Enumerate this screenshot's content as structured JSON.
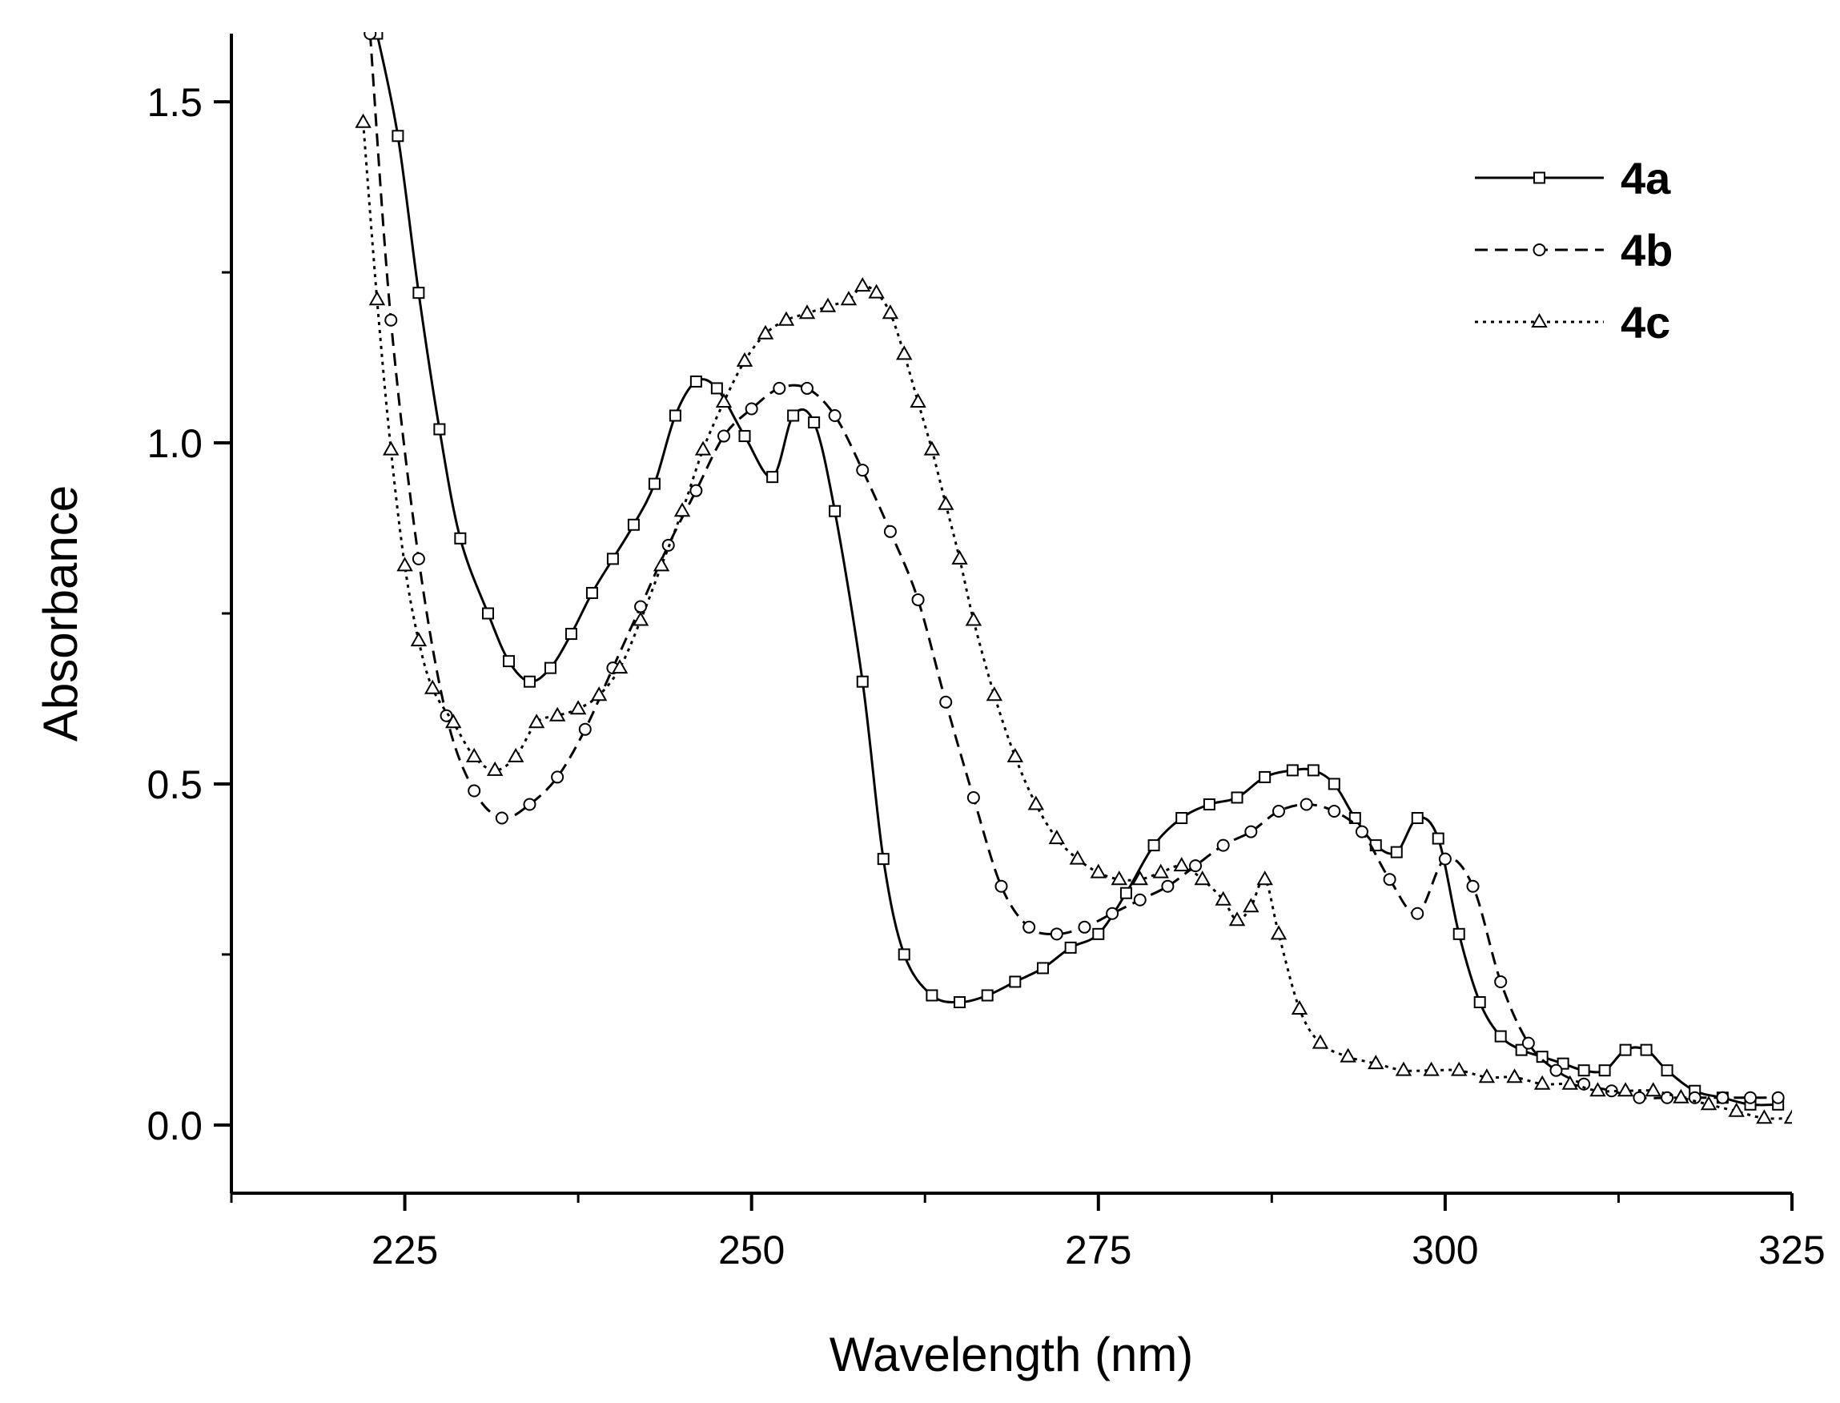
{
  "chart_data": {
    "type": "line",
    "xlabel": "Wavelength (nm)",
    "ylabel": "Absorbance",
    "xlim": [
      212.5,
      325
    ],
    "ylim": [
      -0.1,
      1.6
    ],
    "xticks": [
      225,
      250,
      275,
      300,
      325
    ],
    "xtick_labels": [
      "225",
      "250",
      "275",
      "300",
      "325"
    ],
    "yticks": [
      0.0,
      0.5,
      1.0,
      1.5
    ],
    "ytick_labels": [
      "0.0",
      "0.5",
      "1.0",
      "1.5"
    ],
    "legend_position": "top-right",
    "series": [
      {
        "name": "4a",
        "line_style": "solid",
        "marker": "square",
        "x": [
          223,
          224.5,
          226,
          227.5,
          229,
          231,
          232.5,
          234,
          235.5,
          237,
          238.5,
          240,
          241.5,
          243,
          244.5,
          246,
          247.5,
          249.5,
          251.5,
          253,
          254.5,
          256,
          258,
          259.5,
          261,
          263,
          265,
          267,
          269,
          271,
          273,
          275,
          277,
          279,
          281,
          283,
          285,
          287,
          289,
          290.5,
          292,
          293.5,
          295,
          296.5,
          298,
          299.5,
          301,
          302.5,
          304,
          305.5,
          307,
          308.5,
          310,
          311.5,
          313,
          314.5,
          316,
          318,
          320,
          322,
          324
        ],
        "y": [
          1.6,
          1.45,
          1.22,
          1.02,
          0.86,
          0.75,
          0.68,
          0.65,
          0.67,
          0.72,
          0.78,
          0.83,
          0.88,
          0.94,
          1.04,
          1.09,
          1.08,
          1.01,
          0.95,
          1.04,
          1.03,
          0.9,
          0.65,
          0.39,
          0.25,
          0.19,
          0.18,
          0.19,
          0.21,
          0.23,
          0.26,
          0.28,
          0.34,
          0.41,
          0.45,
          0.47,
          0.48,
          0.51,
          0.52,
          0.52,
          0.5,
          0.45,
          0.41,
          0.4,
          0.45,
          0.42,
          0.28,
          0.18,
          0.13,
          0.11,
          0.1,
          0.09,
          0.08,
          0.08,
          0.11,
          0.11,
          0.08,
          0.05,
          0.04,
          0.03,
          0.03
        ]
      },
      {
        "name": "4b",
        "line_style": "dashed",
        "marker": "circle",
        "x": [
          222.5,
          224,
          226,
          228,
          230,
          232,
          234,
          236,
          238,
          240,
          242,
          244,
          246,
          248,
          250,
          252,
          254,
          256,
          258,
          260,
          262,
          264,
          266,
          268,
          270,
          272,
          274,
          276,
          278,
          280,
          282,
          284,
          286,
          288,
          290,
          292,
          294,
          296,
          298,
          300,
          302,
          304,
          306,
          308,
          310,
          312,
          314,
          316,
          318,
          320,
          322,
          324
        ],
        "y": [
          1.6,
          1.18,
          0.83,
          0.6,
          0.49,
          0.45,
          0.47,
          0.51,
          0.58,
          0.67,
          0.76,
          0.85,
          0.93,
          1.01,
          1.05,
          1.08,
          1.08,
          1.04,
          0.96,
          0.87,
          0.77,
          0.62,
          0.48,
          0.35,
          0.29,
          0.28,
          0.29,
          0.31,
          0.33,
          0.35,
          0.38,
          0.41,
          0.43,
          0.46,
          0.47,
          0.46,
          0.43,
          0.36,
          0.31,
          0.39,
          0.35,
          0.21,
          0.12,
          0.08,
          0.06,
          0.05,
          0.04,
          0.04,
          0.04,
          0.04,
          0.04,
          0.04
        ]
      },
      {
        "name": "4c",
        "line_style": "dotted",
        "marker": "triangle",
        "x": [
          222,
          223,
          224,
          225,
          226,
          227,
          228.5,
          230,
          231.5,
          233,
          234.5,
          236,
          237.5,
          239,
          240.5,
          242,
          243.5,
          245,
          246.5,
          248,
          249.5,
          251,
          252.5,
          254,
          255.5,
          257,
          258,
          259,
          260,
          261,
          262,
          263,
          264,
          265,
          266,
          267.5,
          269,
          270.5,
          272,
          273.5,
          275,
          276.5,
          278,
          279.5,
          281,
          282.5,
          284,
          285,
          286,
          287,
          288,
          289.5,
          291,
          293,
          295,
          297,
          299,
          301,
          303,
          305,
          307,
          309,
          311,
          313,
          315,
          317,
          319,
          321,
          323,
          325
        ],
        "y": [
          1.47,
          1.21,
          0.99,
          0.82,
          0.71,
          0.64,
          0.59,
          0.54,
          0.52,
          0.54,
          0.59,
          0.6,
          0.61,
          0.63,
          0.67,
          0.74,
          0.82,
          0.9,
          0.99,
          1.06,
          1.12,
          1.16,
          1.18,
          1.19,
          1.2,
          1.21,
          1.23,
          1.22,
          1.19,
          1.13,
          1.06,
          0.99,
          0.91,
          0.83,
          0.74,
          0.63,
          0.54,
          0.47,
          0.42,
          0.39,
          0.37,
          0.36,
          0.36,
          0.37,
          0.38,
          0.36,
          0.33,
          0.3,
          0.32,
          0.36,
          0.28,
          0.17,
          0.12,
          0.1,
          0.09,
          0.08,
          0.08,
          0.08,
          0.07,
          0.07,
          0.06,
          0.06,
          0.05,
          0.05,
          0.05,
          0.04,
          0.03,
          0.02,
          0.01,
          0.01
        ]
      }
    ]
  }
}
